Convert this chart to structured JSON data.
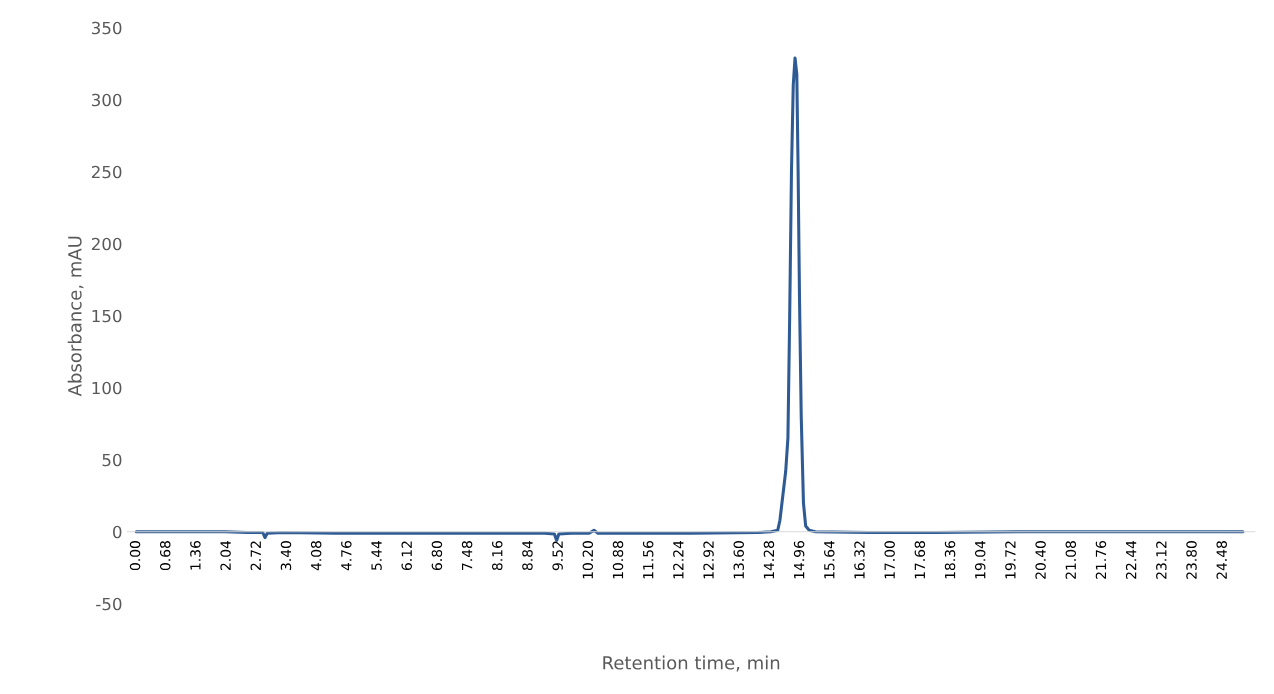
{
  "chart_data": {
    "type": "line",
    "xlabel": "Retention time, min",
    "ylabel": "Absorbance, mAU",
    "series": [
      {
        "color": "#2f5b94",
        "x": [
          0,
          1.0,
          2.0,
          2.5,
          2.85,
          2.9,
          2.95,
          3.3,
          4.5,
          6.0,
          8.0,
          9.2,
          9.42,
          9.47,
          9.52,
          9.8,
          10.2,
          10.31,
          10.4,
          11.0,
          12.5,
          14.0,
          14.3,
          14.45,
          14.5,
          14.63,
          14.68,
          14.72,
          14.76,
          14.8,
          14.84,
          14.88,
          14.91,
          14.94,
          14.98,
          15.03,
          15.08,
          15.16,
          15.3,
          16.5,
          18.0,
          20.0,
          22.0,
          24.93
        ],
        "values": [
          0,
          0,
          0,
          -0.5,
          -0.5,
          -4,
          -1,
          -0.5,
          -1,
          -1,
          -1,
          -1,
          -1.5,
          -6,
          -1.5,
          -1,
          -1,
          1,
          -1,
          -1,
          -1,
          -0.5,
          0,
          1,
          8,
          42,
          65,
          150,
          250,
          310,
          329,
          318,
          250,
          165,
          80,
          20,
          4,
          1,
          0,
          -0.5,
          -0.5,
          0,
          0,
          0
        ]
      }
    ],
    "xlim": [
      -0.2,
      25.2
    ],
    "xticks": [
      {
        "value": 0,
        "label": "0.00"
      },
      {
        "value": 0.68,
        "label": "0.68"
      },
      {
        "value": 1.36,
        "label": "1.36"
      },
      {
        "value": 2.04,
        "label": "2.04"
      },
      {
        "value": 2.72,
        "label": "2.72"
      },
      {
        "value": 3.4,
        "label": "3.40"
      },
      {
        "value": 4.08,
        "label": "4.08"
      },
      {
        "value": 4.76,
        "label": "4.76"
      },
      {
        "value": 5.44,
        "label": "5.44"
      },
      {
        "value": 6.12,
        "label": "6.12"
      },
      {
        "value": 6.8,
        "label": "6.80"
      },
      {
        "value": 7.48,
        "label": "7.48"
      },
      {
        "value": 8.16,
        "label": "8.16"
      },
      {
        "value": 8.84,
        "label": "8.84"
      },
      {
        "value": 9.52,
        "label": "9.52"
      },
      {
        "value": 10.2,
        "label": "10.20"
      },
      {
        "value": 10.88,
        "label": "10.88"
      },
      {
        "value": 11.56,
        "label": "11.56"
      },
      {
        "value": 12.24,
        "label": "12.24"
      },
      {
        "value": 12.92,
        "label": "12.92"
      },
      {
        "value": 13.6,
        "label": "13.60"
      },
      {
        "value": 14.28,
        "label": "14.28"
      },
      {
        "value": 14.96,
        "label": "14.96"
      },
      {
        "value": 15.64,
        "label": "15.64"
      },
      {
        "value": 16.32,
        "label": "16.32"
      },
      {
        "value": 17.0,
        "label": "17.00"
      },
      {
        "value": 17.68,
        "label": "17.68"
      },
      {
        "value": 18.36,
        "label": "18.36"
      },
      {
        "value": 19.04,
        "label": "19.04"
      },
      {
        "value": 19.72,
        "label": "19.72"
      },
      {
        "value": 20.4,
        "label": "20.40"
      },
      {
        "value": 21.08,
        "label": "21.08"
      },
      {
        "value": 21.76,
        "label": "21.76"
      },
      {
        "value": 22.44,
        "label": "22.44"
      },
      {
        "value": 23.12,
        "label": "23.12"
      },
      {
        "value": 23.8,
        "label": "23.80"
      },
      {
        "value": 24.48,
        "label": "24.48"
      }
    ],
    "ylim": [
      -50,
      350
    ],
    "yticks": [
      -50,
      0,
      50,
      100,
      150,
      200,
      250,
      300,
      350
    ],
    "grid": false,
    "legend": false
  }
}
